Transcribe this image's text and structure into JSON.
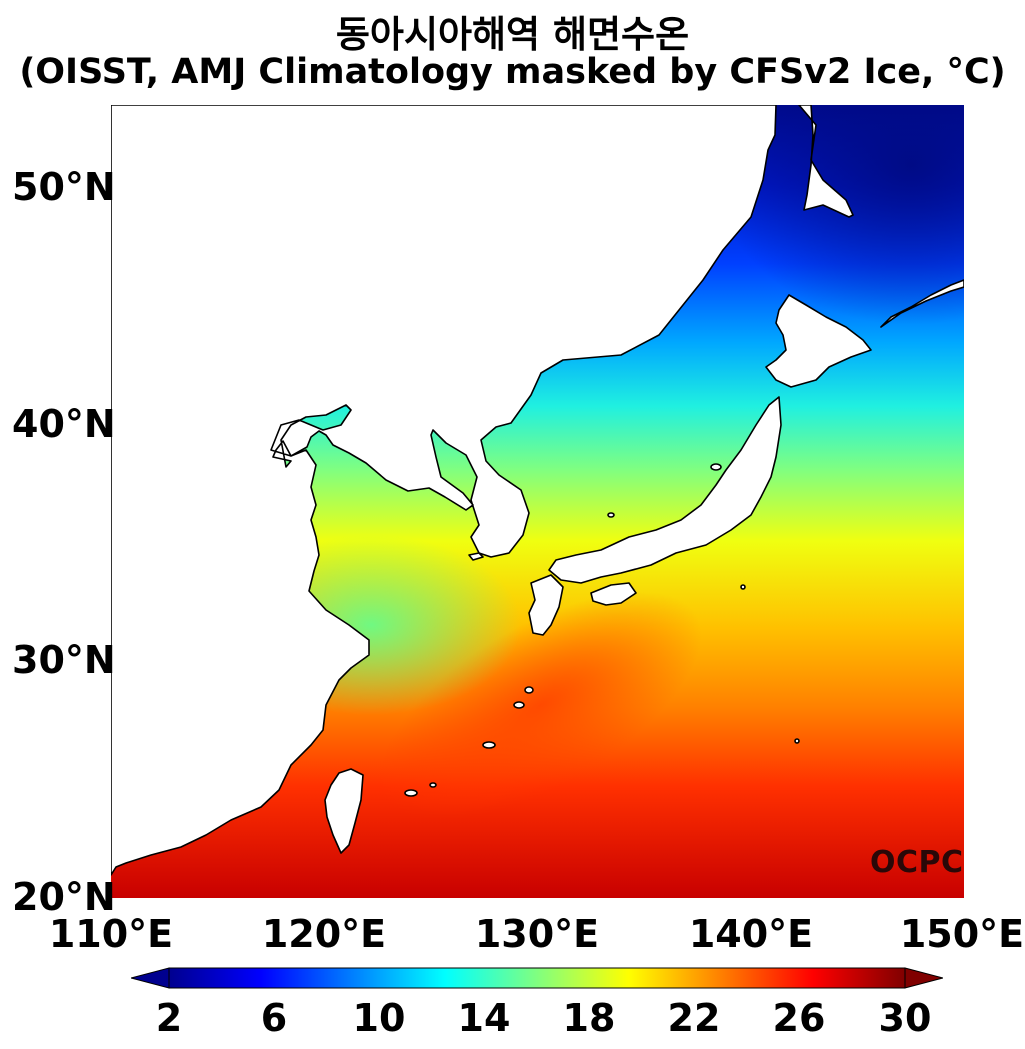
{
  "title": {
    "line1": "동아시아해역 해면수온",
    "line2": "(OISST, AMJ Climatology masked by CFSv2 Ice, °C)"
  },
  "axes": {
    "lat_labels": [
      "50°N",
      "40°N",
      "30°N",
      "20°N"
    ],
    "lon_labels": [
      "110°E",
      "120°E",
      "130°E",
      "140°E",
      "150°E"
    ]
  },
  "colorbar": {
    "ticks": [
      "2",
      "6",
      "10",
      "14",
      "18",
      "22",
      "26",
      "30"
    ],
    "min": 2,
    "max": 30,
    "colormap": "jet",
    "extend": "both"
  },
  "credit": "OCPC",
  "colors": {
    "land": "#ffffff",
    "coastline": "#000000",
    "cold": "#00008f",
    "warm": "#c80000"
  }
}
